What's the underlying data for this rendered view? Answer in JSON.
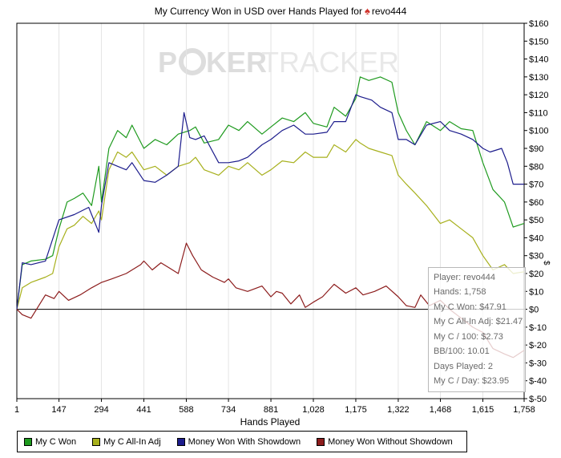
{
  "title": {
    "prefix": "My Currency Won in USD over Hands Played for",
    "spade": "♠",
    "player": "revo444"
  },
  "watermark": {
    "text_a": "P",
    "text_b": "KER",
    "text_c": "TRACKER"
  },
  "y_axis_label": "$",
  "legend": [
    {
      "label": "My C Won",
      "color": "#1e9a1e"
    },
    {
      "label": "My C All-In Adj",
      "color": "#a7b01c"
    },
    {
      "label": "Money Won With Showdown",
      "color": "#1c1c8c"
    },
    {
      "label": "Money Won Without Showdown",
      "color": "#8c1c1c"
    }
  ],
  "tooltip": {
    "player": "Player: revo444",
    "hands": "Hands: 1,758",
    "won": "My C Won: $47.91",
    "allin": "My C All-In Adj: $21.47",
    "per100": "My C / 100: $2.73",
    "bb100": "BB/100: 10.01",
    "days": "Days Played: 2",
    "perday": "My C / Day: $23.95"
  },
  "chart_data": {
    "type": "line",
    "title": "My Currency Won in USD over Hands Played for revo444",
    "xlabel": "Hands Played",
    "ylabel": "$",
    "xlim": [
      1,
      1758
    ],
    "ylim": [
      -50,
      160
    ],
    "x_ticks": [
      1,
      147,
      294,
      441,
      588,
      734,
      881,
      1028,
      1175,
      1322,
      1468,
      1615,
      1758
    ],
    "x_tick_labels": [
      "1",
      "147",
      "294",
      "441",
      "588",
      "734",
      "881",
      "1,028",
      "1,175",
      "1,322",
      "1,468",
      "1,615",
      "1,758"
    ],
    "y_ticks": [
      -50,
      -40,
      -30,
      -20,
      -10,
      0,
      10,
      20,
      30,
      40,
      50,
      60,
      70,
      80,
      90,
      100,
      110,
      120,
      130,
      140,
      150,
      160
    ],
    "y_tick_labels": [
      "$-50",
      "$-40",
      "$-30",
      "$-20",
      "$-10",
      "$0",
      "$10",
      "$20",
      "$30",
      "$40",
      "$50",
      "$60",
      "$70",
      "$80",
      "$90",
      "$100",
      "$110",
      "$120",
      "$130",
      "$140",
      "$150",
      "$160"
    ],
    "grid": "vertical",
    "legend_position": "bottom",
    "series": [
      {
        "name": "My C Won",
        "color": "#1e9a1e",
        "x": [
          1,
          20,
          50,
          100,
          125,
          147,
          175,
          200,
          230,
          260,
          285,
          294,
          320,
          350,
          380,
          400,
          441,
          480,
          520,
          560,
          600,
          620,
          650,
          700,
          734,
          770,
          800,
          850,
          881,
          920,
          960,
          1000,
          1028,
          1075,
          1100,
          1140,
          1175,
          1190,
          1220,
          1260,
          1300,
          1322,
          1350,
          1380,
          1420,
          1468,
          1500,
          1540,
          1580,
          1615,
          1650,
          1690,
          1720,
          1758
        ],
        "y": [
          0,
          25,
          27,
          28,
          30,
          45,
          60,
          62,
          65,
          58,
          80,
          60,
          90,
          100,
          96,
          103,
          90,
          95,
          92,
          98,
          100,
          102,
          93,
          95,
          103,
          100,
          105,
          98,
          102,
          107,
          105,
          110,
          104,
          102,
          113,
          108,
          118,
          130,
          128,
          130,
          127,
          110,
          100,
          92,
          105,
          100,
          105,
          101,
          100,
          82,
          67,
          60,
          46,
          48
        ]
      },
      {
        "name": "My C All-In Adj",
        "color": "#a7b01c",
        "x": [
          1,
          20,
          50,
          100,
          125,
          147,
          175,
          200,
          230,
          260,
          285,
          294,
          320,
          350,
          380,
          400,
          441,
          480,
          520,
          560,
          600,
          620,
          650,
          700,
          734,
          770,
          800,
          850,
          881,
          920,
          960,
          1000,
          1028,
          1075,
          1100,
          1140,
          1175,
          1190,
          1220,
          1260,
          1300,
          1322,
          1350,
          1380,
          1420,
          1468,
          1500,
          1540,
          1580,
          1615,
          1650,
          1690,
          1720,
          1758
        ],
        "y": [
          0,
          12,
          15,
          18,
          20,
          35,
          45,
          47,
          52,
          48,
          55,
          50,
          78,
          88,
          85,
          88,
          78,
          80,
          75,
          80,
          82,
          85,
          78,
          75,
          80,
          78,
          82,
          75,
          78,
          83,
          82,
          88,
          85,
          85,
          92,
          88,
          95,
          93,
          90,
          88,
          86,
          75,
          70,
          65,
          58,
          48,
          50,
          45,
          40,
          30,
          22,
          25,
          20,
          21
        ]
      },
      {
        "name": "Money Won With Showdown",
        "color": "#1c1c8c",
        "x": [
          1,
          20,
          50,
          100,
          147,
          200,
          250,
          285,
          294,
          320,
          350,
          380,
          400,
          441,
          480,
          520,
          560,
          580,
          600,
          620,
          650,
          700,
          734,
          770,
          800,
          850,
          881,
          920,
          960,
          1000,
          1028,
          1075,
          1100,
          1140,
          1175,
          1190,
          1230,
          1260,
          1300,
          1322,
          1350,
          1380,
          1420,
          1468,
          1500,
          1540,
          1580,
          1615,
          1640,
          1680,
          1700,
          1720,
          1758
        ],
        "y": [
          0,
          26,
          25,
          27,
          50,
          53,
          57,
          43,
          58,
          82,
          80,
          78,
          82,
          72,
          71,
          75,
          80,
          110,
          96,
          95,
          97,
          82,
          82,
          83,
          85,
          92,
          95,
          100,
          103,
          98,
          98,
          99,
          105,
          105,
          120,
          119,
          117,
          113,
          110,
          95,
          95,
          92,
          103,
          105,
          100,
          98,
          95,
          90,
          88,
          90,
          82,
          70,
          70
        ]
      },
      {
        "name": "Money Won Without Showdown",
        "color": "#8c1c1c",
        "x": [
          1,
          20,
          50,
          100,
          130,
          147,
          180,
          220,
          260,
          294,
          330,
          380,
          430,
          441,
          470,
          500,
          530,
          560,
          588,
          610,
          640,
          680,
          720,
          734,
          760,
          800,
          850,
          881,
          900,
          920,
          950,
          980,
          1000,
          1028,
          1060,
          1100,
          1140,
          1175,
          1200,
          1240,
          1280,
          1322,
          1350,
          1380,
          1400,
          1430,
          1468,
          1500,
          1540,
          1580,
          1615,
          1650,
          1690,
          1720,
          1758
        ],
        "y": [
          0,
          -3,
          -5,
          8,
          6,
          10,
          5,
          8,
          12,
          15,
          17,
          20,
          25,
          27,
          22,
          26,
          23,
          20,
          37,
          30,
          22,
          18,
          15,
          17,
          12,
          10,
          13,
          7,
          10,
          9,
          3,
          8,
          1,
          4,
          7,
          14,
          9,
          12,
          8,
          10,
          13,
          7,
          2,
          1,
          8,
          2,
          5,
          0,
          -5,
          -10,
          -13,
          -22,
          -25,
          -27,
          -23
        ]
      }
    ]
  }
}
